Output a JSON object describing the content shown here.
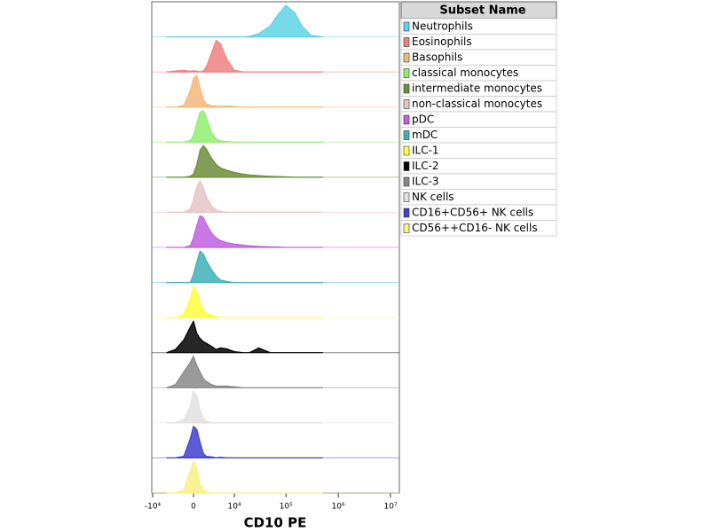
{
  "chart_data": {
    "type": "ridgeline",
    "xlabel": "CD10 PE",
    "xscale": "asinh",
    "xlim": [
      -10000,
      10000000
    ],
    "xticks": [
      {
        "value": -10000,
        "label": "-10⁴"
      },
      0,
      {
        "value": 10000,
        "label": "10⁴"
      },
      {
        "value": 100000,
        "label": "10⁵"
      },
      {
        "value": 1000000,
        "label": "10⁶"
      },
      {
        "value": 10000000,
        "label": "10⁷"
      }
    ],
    "legend_title": "Subset Name",
    "legend_position": "right",
    "x": [
      -5000,
      -3000,
      -1500,
      -500,
      0,
      500,
      1000,
      1500,
      2000,
      3000,
      4000,
      5000,
      7000,
      10000,
      15000,
      20000,
      30000,
      50000,
      70000,
      100000,
      150000,
      200000,
      300000,
      500000
    ],
    "series": [
      {
        "name": "Neutrophils",
        "color": "#5fd3e8",
        "values": [
          0,
          0,
          0,
          0,
          0,
          0,
          0,
          0,
          0,
          0,
          0,
          0,
          0,
          0,
          0,
          2,
          10,
          35,
          70,
          100,
          75,
          35,
          5,
          0
        ]
      },
      {
        "name": "Eosinophils",
        "color": "#f08080",
        "values": [
          0,
          3,
          5,
          2,
          4,
          2,
          1,
          3,
          15,
          60,
          100,
          90,
          40,
          5,
          0,
          0,
          0,
          0,
          0,
          0,
          0,
          0,
          0,
          0
        ]
      },
      {
        "name": "Basophils",
        "color": "#f4b77a",
        "values": [
          0,
          0,
          5,
          50,
          90,
          100,
          60,
          25,
          10,
          4,
          3,
          2,
          3,
          2,
          0,
          0,
          0,
          0,
          0,
          0,
          0,
          0,
          0,
          0
        ]
      },
      {
        "name": "classical monocytes",
        "color": "#90ee70",
        "values": [
          0,
          0,
          0,
          5,
          20,
          60,
          95,
          100,
          80,
          30,
          10,
          4,
          2,
          0,
          0,
          0,
          0,
          0,
          0,
          0,
          0,
          0,
          0,
          0
        ]
      },
      {
        "name": "intermediate monocytes",
        "color": "#6b8e3a",
        "values": [
          0,
          0,
          0,
          3,
          10,
          40,
          85,
          100,
          90,
          60,
          40,
          30,
          22,
          15,
          10,
          7,
          5,
          3,
          2,
          1,
          0,
          0,
          0,
          0
        ]
      },
      {
        "name": "non-classical monocytes",
        "color": "#e6c4c4",
        "values": [
          0,
          0,
          0,
          10,
          40,
          80,
          100,
          80,
          50,
          20,
          8,
          3,
          0,
          0,
          0,
          0,
          0,
          0,
          0,
          0,
          0,
          0,
          0,
          0
        ]
      },
      {
        "name": "pDC",
        "color": "#c060e0",
        "values": [
          0,
          0,
          0,
          5,
          30,
          70,
          100,
          95,
          75,
          45,
          30,
          22,
          15,
          10,
          7,
          5,
          3,
          2,
          1,
          0,
          0,
          0,
          0,
          0
        ]
      },
      {
        "name": "mDC",
        "color": "#40b0b8",
        "values": [
          0,
          0,
          0,
          0,
          25,
          65,
          100,
          90,
          70,
          40,
          20,
          8,
          3,
          0,
          0,
          0,
          0,
          0,
          0,
          0,
          0,
          0,
          0,
          0
        ]
      },
      {
        "name": "ILC-1",
        "color": "#ffff40",
        "values": [
          0,
          0,
          10,
          60,
          100,
          80,
          50,
          25,
          15,
          8,
          3,
          0,
          0,
          0,
          0,
          0,
          0,
          0,
          0,
          0,
          0,
          0,
          0,
          0
        ]
      },
      {
        "name": "ILC-2",
        "color": "#000000",
        "values": [
          0,
          10,
          40,
          80,
          100,
          60,
          45,
          35,
          30,
          20,
          10,
          15,
          12,
          3,
          0,
          0,
          15,
          0,
          0,
          0,
          0,
          0,
          0,
          0
        ]
      },
      {
        "name": "ILC-3",
        "color": "#888888",
        "values": [
          0,
          10,
          50,
          80,
          100,
          70,
          50,
          30,
          20,
          10,
          5,
          5,
          5,
          3,
          0,
          0,
          0,
          0,
          0,
          0,
          0,
          0,
          0,
          0
        ]
      },
      {
        "name": "NK cells",
        "color": "#e0e0e0",
        "values": [
          0,
          0,
          10,
          50,
          100,
          85,
          40,
          15,
          5,
          0,
          0,
          0,
          0,
          0,
          0,
          0,
          0,
          0,
          0,
          0,
          0,
          0,
          0,
          0
        ]
      },
      {
        "name": "CD16+CD56+ NK cells",
        "color": "#4040d0",
        "values": [
          0,
          0,
          5,
          60,
          100,
          90,
          50,
          15,
          5,
          3,
          0,
          2,
          0,
          0,
          0,
          0,
          0,
          0,
          0,
          0,
          0,
          0,
          0,
          0
        ]
      },
      {
        "name": "CD56++CD16- NK cells",
        "color": "#f8f080",
        "values": [
          0,
          0,
          10,
          70,
          100,
          80,
          30,
          10,
          3,
          0,
          0,
          0,
          0,
          0,
          0,
          0,
          0,
          0,
          0,
          0,
          0,
          0,
          0,
          0
        ]
      }
    ]
  }
}
